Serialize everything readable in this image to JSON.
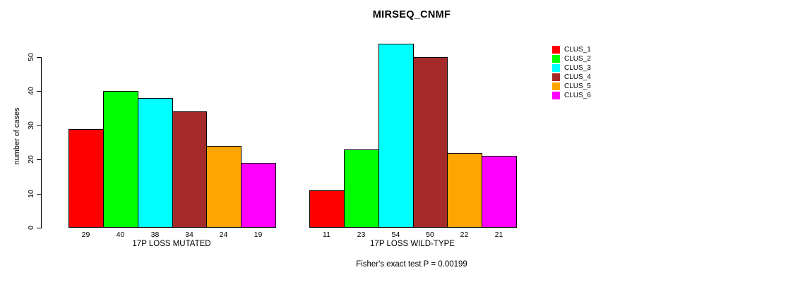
{
  "title": "MIRSEQ_CNMF",
  "chart_data": {
    "type": "bar",
    "title": "MIRSEQ_CNMF",
    "xlabel": "",
    "ylabel": "number of cases",
    "ylim": [
      0,
      50
    ],
    "yticks": [
      0,
      10,
      20,
      30,
      40,
      50
    ],
    "grid": false,
    "legend_position": "right-outside-top",
    "bar_border_color": "#000000",
    "clusters": [
      "CLUS_1",
      "CLUS_2",
      "CLUS_3",
      "CLUS_4",
      "CLUS_5",
      "CLUS_6"
    ],
    "colors": [
      "#FF0000",
      "#00FF00",
      "#00FFFF",
      "#A52A2A",
      "#FFA500",
      "#FF00FF"
    ],
    "groups": [
      {
        "label": "17P LOSS MUTATED",
        "values": [
          29,
          40,
          38,
          34,
          24,
          19
        ]
      },
      {
        "label": "17P LOSS WILD-TYPE",
        "values": [
          11,
          23,
          54,
          50,
          22,
          21
        ]
      }
    ],
    "value_labels_shown": true,
    "annotation": "Fisher's exact test P = 0.00199"
  },
  "legend": {
    "items": [
      {
        "label": "CLUS_1",
        "color": "#FF0000"
      },
      {
        "label": "CLUS_2",
        "color": "#00FF00"
      },
      {
        "label": "CLUS_3",
        "color": "#00FFFF"
      },
      {
        "label": "CLUS_4",
        "color": "#A52A2A"
      },
      {
        "label": "CLUS_5",
        "color": "#FFA500"
      },
      {
        "label": "CLUS_6",
        "color": "#FF00FF"
      }
    ]
  }
}
